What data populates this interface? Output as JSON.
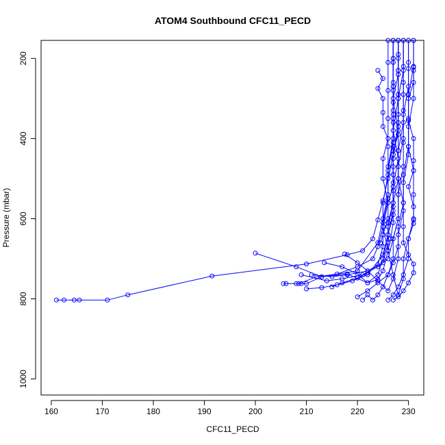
{
  "chart_data": {
    "type": "line",
    "title": "ATOM4 Southbound CFC11_PECD",
    "xlabel": "CFC11_PECD",
    "ylabel": "Pressure (mbar)",
    "xlim": [
      158,
      233
    ],
    "ylim": [
      1040,
      155
    ],
    "y_inverted": true,
    "x_ticks": [
      160,
      170,
      180,
      190,
      200,
      210,
      220,
      230
    ],
    "y_ticks": [
      200,
      400,
      600,
      800,
      1000
    ],
    "grid": false,
    "legend": "none",
    "marker": "open-circle",
    "color": "#0000ff",
    "series": [
      {
        "values": [
          [
            161,
            803
          ],
          [
            162.5,
            803
          ],
          [
            164.5,
            803
          ],
          [
            165.5,
            803
          ],
          [
            171,
            803
          ],
          [
            175,
            790
          ],
          [
            191.5,
            743
          ],
          [
            210,
            713
          ],
          [
            218,
            690
          ],
          [
            221,
            680
          ],
          [
            223,
            650
          ],
          [
            224,
            603
          ],
          [
            225,
            555
          ],
          [
            226,
            500
          ],
          [
            227,
            440
          ],
          [
            228,
            380
          ],
          [
            227,
            300
          ],
          [
            228,
            240
          ],
          [
            228,
            200
          ],
          [
            228,
            155
          ]
        ]
      },
      {
        "values": [
          [
            200,
            686
          ],
          [
            208,
            720
          ],
          [
            213,
            745
          ],
          [
            218,
            738
          ],
          [
            222,
            760
          ],
          [
            224,
            740
          ],
          [
            225,
            700
          ],
          [
            226,
            640
          ],
          [
            227,
            590
          ],
          [
            227,
            520
          ],
          [
            228,
            450
          ],
          [
            227,
            380
          ],
          [
            228,
            300
          ],
          [
            229,
            230
          ],
          [
            229,
            155
          ]
        ]
      },
      {
        "values": [
          [
            205.5,
            762
          ],
          [
            206,
            762
          ],
          [
            208,
            762
          ],
          [
            209,
            762
          ],
          [
            210,
            762
          ],
          [
            213,
            745
          ],
          [
            220,
            730
          ],
          [
            224,
            660
          ],
          [
            225,
            600
          ],
          [
            226,
            540
          ],
          [
            226,
            470
          ],
          [
            227,
            400
          ],
          [
            227,
            330
          ],
          [
            227,
            270
          ],
          [
            227,
            200
          ],
          [
            227,
            155
          ]
        ]
      },
      {
        "values": [
          [
            208.5,
            762
          ],
          [
            212,
            745
          ],
          [
            216,
            738
          ],
          [
            220,
            720
          ],
          [
            223,
            700
          ],
          [
            224,
            670
          ],
          [
            225,
            620
          ],
          [
            225,
            560
          ],
          [
            226,
            490
          ],
          [
            226,
            420
          ],
          [
            226,
            350
          ],
          [
            226,
            280
          ],
          [
            226,
            210
          ],
          [
            226,
            155
          ]
        ]
      },
      {
        "values": [
          [
            209,
            740
          ],
          [
            214,
            755
          ],
          [
            217,
            750
          ],
          [
            221,
            740
          ],
          [
            224,
            720
          ],
          [
            226,
            700
          ],
          [
            227,
            650
          ],
          [
            228,
            600
          ],
          [
            228,
            540
          ],
          [
            229,
            470
          ],
          [
            229,
            410
          ],
          [
            229,
            340
          ],
          [
            230,
            270
          ],
          [
            230,
            210
          ],
          [
            230,
            155
          ]
        ]
      },
      {
        "values": [
          [
            210,
            775
          ],
          [
            213,
            772
          ],
          [
            216,
            765
          ],
          [
            219,
            755
          ],
          [
            222,
            740
          ],
          [
            225,
            690
          ],
          [
            226,
            640
          ],
          [
            227,
            580
          ],
          [
            227,
            510
          ],
          [
            227,
            440
          ],
          [
            228,
            370
          ],
          [
            228,
            300
          ],
          [
            228,
            230
          ],
          [
            228,
            155
          ]
        ]
      },
      {
        "values": [
          [
            211,
            740
          ],
          [
            215,
            745
          ],
          [
            218,
            740
          ],
          [
            222,
            730
          ],
          [
            225,
            710
          ],
          [
            226,
            660
          ],
          [
            226,
            610
          ],
          [
            227,
            560
          ],
          [
            228,
            500
          ],
          [
            228,
            430
          ],
          [
            229,
            360
          ],
          [
            229,
            290
          ],
          [
            229,
            220
          ],
          [
            229,
            155
          ]
        ]
      },
      {
        "values": [
          [
            213.5,
            710
          ],
          [
            217,
            720
          ],
          [
            220,
            738
          ],
          [
            222,
            760
          ],
          [
            224,
            752
          ],
          [
            225,
            730
          ],
          [
            226,
            680
          ],
          [
            226,
            620
          ],
          [
            227,
            560
          ],
          [
            227,
            490
          ],
          [
            227,
            420
          ],
          [
            227,
            350
          ],
          [
            227,
            280
          ],
          [
            227,
            210
          ],
          [
            227,
            155
          ]
        ]
      },
      {
        "values": [
          [
            215,
            770
          ],
          [
            217,
            760
          ],
          [
            220,
            748
          ],
          [
            222,
            735
          ],
          [
            224,
            715
          ],
          [
            225,
            670
          ],
          [
            225,
            610
          ],
          [
            226,
            550
          ],
          [
            226,
            480
          ],
          [
            227,
            410
          ],
          [
            227,
            340
          ],
          [
            227,
            270
          ],
          [
            227,
            200
          ],
          [
            227,
            155
          ]
        ]
      },
      {
        "values": [
          [
            217.5,
            688
          ],
          [
            220,
            710
          ],
          [
            222,
            730
          ],
          [
            224,
            755
          ],
          [
            226,
            780
          ],
          [
            227,
            750
          ],
          [
            228,
            700
          ],
          [
            228,
            640
          ],
          [
            229,
            580
          ],
          [
            229,
            510
          ],
          [
            230,
            440
          ],
          [
            230,
            370
          ],
          [
            231,
            300
          ],
          [
            231,
            230
          ],
          [
            231,
            155
          ]
        ]
      },
      {
        "values": [
          [
            220,
            795
          ],
          [
            222,
            780
          ],
          [
            224,
            760
          ],
          [
            226,
            740
          ],
          [
            227,
            710
          ],
          [
            228,
            670
          ],
          [
            228,
            620
          ],
          [
            229,
            560
          ],
          [
            229,
            490
          ],
          [
            230,
            420
          ],
          [
            230,
            350
          ],
          [
            230,
            290
          ],
          [
            230,
            225
          ],
          [
            230,
            155
          ]
        ]
      },
      {
        "values": [
          [
            221,
            803
          ],
          [
            222,
            790
          ],
          [
            223,
            803
          ],
          [
            224,
            790
          ],
          [
            225,
            770
          ],
          [
            226,
            740
          ],
          [
            227,
            700
          ],
          [
            227,
            650
          ],
          [
            228,
            600
          ],
          [
            228,
            540
          ],
          [
            228,
            470
          ],
          [
            229,
            400
          ],
          [
            229,
            330
          ],
          [
            229,
            260
          ],
          [
            229,
            155
          ]
        ]
      },
      {
        "values": [
          [
            226,
            803
          ],
          [
            227,
            790
          ],
          [
            228,
            770
          ],
          [
            229,
            740
          ],
          [
            230,
            700
          ],
          [
            230,
            650
          ],
          [
            231,
            600
          ],
          [
            231,
            540
          ],
          [
            231,
            480
          ],
          [
            230,
            420
          ],
          [
            230,
            355
          ],
          [
            230,
            290
          ],
          [
            231,
            220
          ],
          [
            231,
            155
          ]
        ]
      },
      {
        "values": [
          [
            227,
            803
          ],
          [
            228,
            795
          ],
          [
            229,
            780
          ],
          [
            230,
            760
          ],
          [
            231,
            735
          ],
          [
            231,
            713
          ],
          [
            230,
            690
          ],
          [
            229,
            660
          ],
          [
            229,
            620
          ],
          [
            229,
            560
          ],
          [
            228,
            500
          ],
          [
            228,
            430
          ],
          [
            228,
            360
          ],
          [
            228,
            290
          ],
          [
            228,
            230
          ],
          [
            228,
            155
          ]
        ]
      },
      {
        "values": [
          [
            224,
            230
          ],
          [
            225,
            250
          ],
          [
            224,
            275
          ],
          [
            225,
            300
          ],
          [
            225,
            335
          ],
          [
            225,
            370
          ],
          [
            226,
            400
          ],
          [
            225,
            450
          ],
          [
            225,
            500
          ],
          [
            226,
            560
          ],
          [
            225,
            620
          ],
          [
            226,
            680
          ],
          [
            227,
            740
          ],
          [
            228,
            790
          ]
        ]
      },
      {
        "values": [
          [
            231,
            222
          ],
          [
            231,
            260
          ],
          [
            230,
            300
          ],
          [
            230,
            355
          ],
          [
            231,
            400
          ],
          [
            231,
            455
          ],
          [
            231,
            480
          ],
          [
            230,
            520
          ],
          [
            231,
            570
          ],
          [
            231,
            603
          ],
          [
            231,
            612
          ],
          [
            230,
            650
          ],
          [
            229,
            700
          ],
          [
            229,
            750
          ],
          [
            228,
            790
          ]
        ]
      },
      {
        "values": [
          [
            224.5,
            660
          ],
          [
            225,
            640
          ],
          [
            226,
            600
          ],
          [
            226,
            560
          ],
          [
            227,
            520
          ],
          [
            227,
            470
          ],
          [
            227,
            430
          ],
          [
            228,
            390
          ],
          [
            228,
            340
          ],
          [
            228,
            290
          ],
          [
            228,
            240
          ],
          [
            228,
            190
          ],
          [
            228,
            155
          ]
        ]
      },
      {
        "values": [
          [
            226,
            680
          ],
          [
            226.5,
            650
          ],
          [
            227,
            610
          ],
          [
            227,
            570
          ],
          [
            227,
            530
          ],
          [
            227,
            490
          ],
          [
            227,
            450
          ],
          [
            227,
            410
          ],
          [
            227,
            360
          ],
          [
            227,
            310
          ],
          [
            227,
            260
          ],
          [
            227,
            210
          ],
          [
            227,
            155
          ]
        ]
      }
    ]
  }
}
